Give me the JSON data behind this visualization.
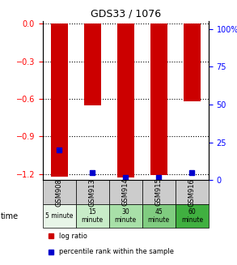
{
  "title": "GDS33 / 1076",
  "samples": [
    "GSM908",
    "GSM913",
    "GSM914",
    "GSM915",
    "GSM916"
  ],
  "time_labels": [
    "5 minute",
    "15\nminute",
    "30\nminute",
    "45\nminute",
    "60\nminute"
  ],
  "time_colors": [
    "#e8f5e8",
    "#c8ecc8",
    "#a8e0a8",
    "#80cc80",
    "#40b040"
  ],
  "log_ratios": [
    -1.22,
    -0.65,
    -1.23,
    -1.21,
    -0.62
  ],
  "percentile_ranks": [
    20,
    5,
    2,
    2,
    5
  ],
  "ylim_left": [
    -1.25,
    0.02
  ],
  "ylim_right": [
    0,
    105
  ],
  "yticks_left": [
    0,
    -0.3,
    -0.6,
    -0.9,
    -1.2
  ],
  "yticks_right": [
    0,
    25,
    50,
    75,
    100
  ],
  "bar_color": "#cc0000",
  "dot_color": "#0000cc",
  "grid_color": "#000000",
  "background_color": "#ffffff",
  "sample_bg_color": "#cccccc",
  "legend_log_ratio": "log ratio",
  "legend_percentile": "percentile rank within the sample"
}
